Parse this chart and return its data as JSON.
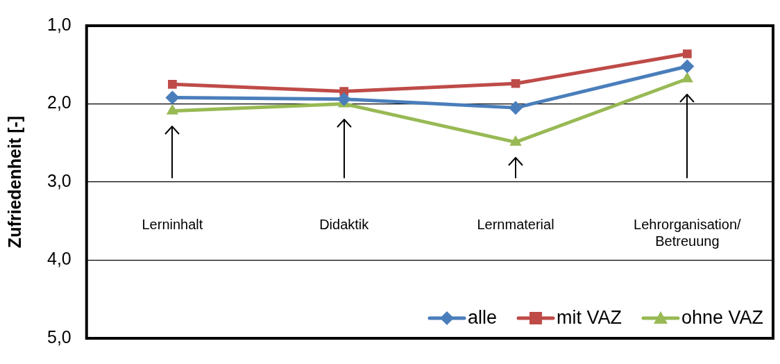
{
  "chart_data": {
    "type": "line",
    "ylabel": "Zufriedenheit [-]",
    "categories": [
      "Lerninhalt",
      "Didaktik",
      "Lernmaterial",
      "Lehrorganisation/Betreuung"
    ],
    "series": [
      {
        "name": "alle",
        "color": "#4a7ebb",
        "marker": "diamond",
        "values": [
          1.92,
          1.94,
          2.05,
          1.52
        ]
      },
      {
        "name": "mit VAZ",
        "color": "#be4b48",
        "marker": "square",
        "values": [
          1.75,
          1.84,
          1.74,
          1.36
        ]
      },
      {
        "name": "ohne VAZ",
        "color": "#98b954",
        "marker": "triangle",
        "values": [
          2.09,
          2.0,
          2.49,
          1.68
        ]
      }
    ],
    "ylim": [
      5,
      1
    ],
    "yticks": [
      {
        "value": 1,
        "label": "1,0"
      },
      {
        "value": 2,
        "label": "2,0"
      },
      {
        "value": 3,
        "label": "3,0"
      },
      {
        "value": 4,
        "label": "4,0"
      },
      {
        "value": 5,
        "label": "5,0"
      }
    ],
    "grid": "y",
    "legend": "bottom right",
    "line_style": "solid"
  }
}
